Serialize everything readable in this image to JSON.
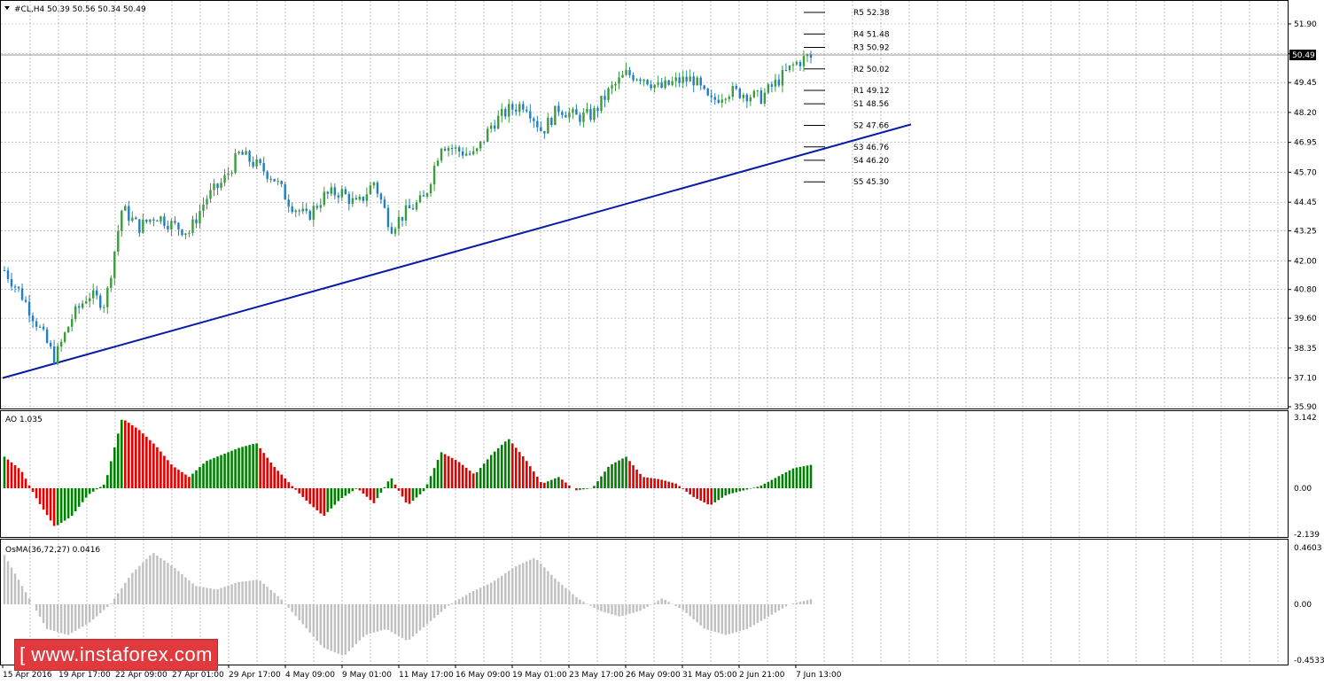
{
  "header": {
    "label": "#CL,H4  50.39 50.56 50.34 50.49"
  },
  "current_price": "50.49",
  "pivots": [
    {
      "label": "R5 52.38",
      "value": 52.38
    },
    {
      "label": "R4 51.48",
      "value": 51.48
    },
    {
      "label": "R3 50.92",
      "value": 50.92
    },
    {
      "label": "R2 50.02",
      "value": 50.02
    },
    {
      "label": "R1 49.12",
      "value": 49.12
    },
    {
      "label": "S1 48.56",
      "value": 48.56
    },
    {
      "label": "S2 47.66",
      "value": 47.66
    },
    {
      "label": "S3 46.76",
      "value": 46.76
    },
    {
      "label": "S4 46.20",
      "value": 46.2
    },
    {
      "label": "S5 45.30",
      "value": 45.3
    }
  ],
  "main_axis_labels": [
    "51.90",
    "50.65",
    "49.45",
    "48.20",
    "46.95",
    "45.70",
    "44.45",
    "43.25",
    "42.00",
    "40.80",
    "39.60",
    "38.35",
    "37.10",
    "35.90"
  ],
  "ao": {
    "label": "AO 1.035",
    "axis_labels": [
      "3.142",
      "0.00",
      "-2.139"
    ]
  },
  "osma": {
    "label": "OsMA(36,72,27) 0.0416",
    "axis_labels": [
      "0.4603",
      "0.00",
      "-0.4533"
    ]
  },
  "time_labels": [
    "15 Apr 2016",
    "19 Apr 17:00",
    "22 Apr 09:00",
    "27 Apr 01:00",
    "29 Apr 17:00",
    "4 May 09:00",
    "9 May 01:00",
    "11 May 17:00",
    "16 May 09:00",
    "19 May 01:00",
    "23 May 17:00",
    "26 May 09:00",
    "31 May 05:00",
    "2 Jun 21:00",
    "7 Jun 13:00"
  ],
  "watermark": "[ www.instaforex.com ]",
  "colors": {
    "bull": "#3c9b3c",
    "bear": "#1f7fbf",
    "trendline": "#0a1aa8",
    "ao_up": "#008000",
    "ao_down": "#e00000",
    "osma": "#c0c0c0",
    "grid": "#a0a0a0"
  },
  "chart_data": [
    {
      "type": "candlestick",
      "title": "#CL,H4",
      "x": [
        "15 Apr 2016",
        "19 Apr 17:00",
        "22 Apr 09:00",
        "27 Apr 01:00",
        "29 Apr 17:00",
        "4 May 09:00",
        "9 May 01:00",
        "11 May 17:00",
        "16 May 09:00",
        "19 May 01:00",
        "23 May 17:00",
        "26 May 09:00",
        "31 May 05:00",
        "2 Jun 21:00",
        "7 Jun 13:00"
      ],
      "close_path": [
        41.6,
        40.6,
        39.3,
        37.9,
        39.6,
        40.6,
        40.2,
        44.2,
        43.4,
        43.9,
        43.5,
        43.2,
        44.6,
        45.3,
        46.5,
        46.0,
        45.5,
        44.4,
        43.8,
        44.7,
        44.9,
        44.3,
        45.3,
        43.4,
        44.1,
        44.6,
        46.9,
        46.6,
        46.4,
        47.7,
        48.3,
        48.6,
        47.4,
        48.4,
        48.0,
        48.1,
        49.1,
        49.8,
        49.7,
        49.2,
        49.5,
        49.6,
        48.6,
        49.1,
        49.0,
        48.8,
        49.5,
        50.2,
        50.6
      ],
      "ylim": [
        35.9,
        52.5
      ],
      "trendline": {
        "from": 37.1,
        "to": 47.7
      },
      "pivots": [
        52.38,
        51.48,
        50.92,
        50.02,
        49.12,
        48.56,
        47.66,
        46.76,
        46.2,
        45.3
      ],
      "last": 50.49
    },
    {
      "type": "bar",
      "title": "AO 1.035",
      "ylim": [
        -2.139,
        3.142
      ],
      "path": [
        1.4,
        0.8,
        -0.6,
        -1.8,
        -1.3,
        -0.3,
        0.2,
        3.1,
        2.6,
        1.9,
        1.0,
        0.5,
        1.2,
        1.5,
        1.8,
        2.0,
        1.0,
        0.2,
        -0.6,
        -1.3,
        -0.5,
        0.0,
        -0.7,
        0.5,
        -0.8,
        -0.1,
        1.6,
        1.2,
        0.6,
        1.5,
        2.2,
        1.3,
        0.2,
        0.5,
        -0.1,
        0.0,
        1.0,
        1.4,
        0.5,
        0.4,
        0.2,
        -0.4,
        -0.8,
        -0.3,
        -0.1,
        0.1,
        0.5,
        0.9,
        1.035
      ]
    },
    {
      "type": "bar",
      "title": "OsMA(36,72,27) 0.0416",
      "ylim": [
        -0.4533,
        0.4603
      ],
      "path": [
        0.4,
        0.1,
        -0.2,
        -0.25,
        -0.15,
        0.0,
        0.25,
        0.42,
        0.3,
        0.15,
        0.12,
        0.18,
        0.2,
        0.05,
        -0.15,
        -0.35,
        -0.42,
        -0.25,
        -0.2,
        -0.3,
        -0.15,
        0.0,
        0.1,
        0.18,
        0.3,
        0.38,
        0.2,
        0.05,
        -0.05,
        -0.1,
        -0.05,
        0.05,
        -0.05,
        -0.2,
        -0.25,
        -0.2,
        -0.1,
        0.0,
        0.0416
      ]
    }
  ]
}
